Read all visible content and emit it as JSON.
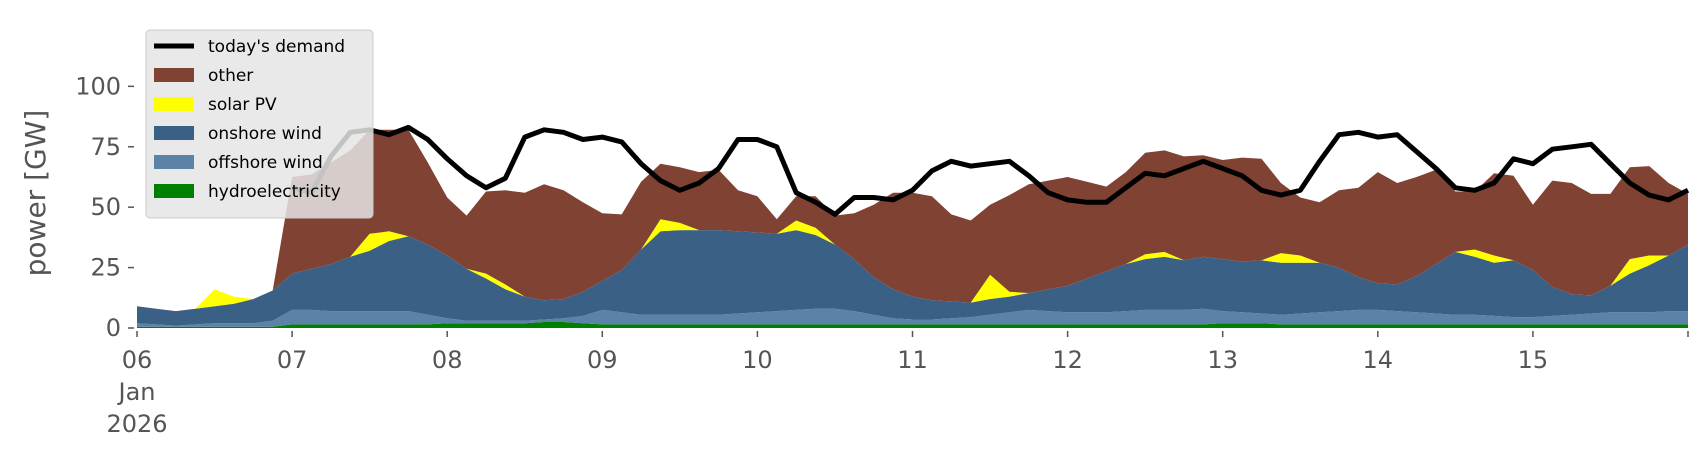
{
  "chart_data": {
    "type": "area",
    "title": "",
    "xlabel": "",
    "ylabel": "power [GW]",
    "ylim": [
      0,
      120
    ],
    "yticks": [
      0,
      25,
      50,
      75,
      100
    ],
    "x_start": "2026-01-06 00:00",
    "x_end": "2026-01-16 00:00",
    "x_tick_labels": [
      {
        "day": "06",
        "month": "Jan",
        "year": "2026"
      },
      {
        "day": "07"
      },
      {
        "day": "08"
      },
      {
        "day": "09"
      },
      {
        "day": "10"
      },
      {
        "day": "11"
      },
      {
        "day": "12"
      },
      {
        "day": "13"
      },
      {
        "day": "14"
      },
      {
        "day": "15"
      }
    ],
    "x_hours": [
      0,
      3,
      6,
      9,
      12,
      15,
      18,
      21,
      24,
      27,
      30,
      33,
      36,
      39,
      42,
      45,
      48,
      51,
      54,
      57,
      60,
      63,
      66,
      69,
      72,
      75,
      78,
      81,
      84,
      87,
      90,
      93,
      96,
      99,
      102,
      105,
      108,
      111,
      114,
      117,
      120,
      123,
      126,
      129,
      132,
      135,
      138,
      141,
      144,
      147,
      150,
      153,
      156,
      159,
      162,
      165,
      168,
      171,
      174,
      177,
      180,
      183,
      186,
      189,
      192,
      195,
      198,
      201,
      204,
      207,
      210,
      213,
      216,
      219,
      222,
      225,
      228,
      231,
      234,
      237,
      240
    ],
    "grid": false,
    "legend_position": "top-left",
    "series": [
      {
        "name": "hydroelectricity",
        "color": "#008000",
        "values": [
          0.5,
          0.5,
          0.5,
          0.5,
          0.5,
          0.5,
          0.5,
          0.5,
          1.5,
          1.5,
          1.5,
          1.5,
          1.5,
          1.5,
          1.5,
          1.5,
          2,
          2,
          2,
          2,
          2,
          2.5,
          2.5,
          2,
          1.5,
          1.5,
          1.5,
          1.5,
          1.5,
          1.5,
          1.5,
          1.5,
          1.5,
          1.5,
          1.5,
          1.5,
          1.5,
          1.5,
          1.5,
          1.5,
          1.5,
          1.5,
          1.5,
          1.5,
          1.5,
          1.5,
          1.5,
          1.5,
          1.5,
          1.5,
          1.5,
          1.5,
          1.5,
          1.5,
          1.5,
          1.5,
          2,
          2,
          2,
          1.5,
          1.5,
          1.5,
          1.5,
          1.5,
          1.5,
          1.5,
          1.5,
          1.5,
          1.5,
          1.5,
          1.5,
          1.5,
          1.5,
          1.5,
          1.5,
          1.5,
          1.5,
          1.5,
          1.5,
          1.5,
          1.5
        ]
      },
      {
        "name": "offshore wind",
        "color": "#5b83a8",
        "values": [
          1.5,
          1,
          0.5,
          1,
          1.5,
          1.5,
          1.5,
          2.5,
          6,
          6,
          5.5,
          5.5,
          5.5,
          5.5,
          5.5,
          4,
          2,
          1,
          1,
          1,
          1,
          1,
          1.5,
          3,
          6,
          5,
          4,
          4,
          4,
          4,
          4,
          4.5,
          5,
          5.5,
          6,
          6.5,
          6.5,
          5.5,
          4,
          2.5,
          2,
          2,
          2.5,
          3,
          4,
          5,
          6,
          5.5,
          5,
          5,
          5,
          5.5,
          6,
          6,
          6,
          6.5,
          5,
          4.5,
          4,
          4,
          4.5,
          5,
          5.5,
          6,
          6,
          5.5,
          5,
          4.5,
          4,
          4,
          3.5,
          3,
          3,
          3.5,
          4,
          4.5,
          5,
          5,
          5,
          5.5,
          5.5
        ]
      },
      {
        "name": "onshore wind",
        "color": "#3a6185",
        "values": [
          7,
          6.5,
          6,
          6.5,
          7,
          8,
          10,
          12.5,
          15,
          17,
          19.5,
          22.5,
          25,
          29,
          31,
          29,
          26,
          21.5,
          17.5,
          13,
          10,
          8,
          8,
          10,
          12,
          17.5,
          27,
          34.5,
          35,
          35,
          35,
          34,
          33,
          32,
          33,
          30.5,
          26.5,
          21.5,
          15.5,
          12,
          9.5,
          8,
          7,
          6,
          6.5,
          6.5,
          7,
          9,
          11,
          14,
          17,
          19.5,
          21,
          22,
          20.5,
          21.5,
          21.5,
          21,
          22,
          21.5,
          21,
          20.5,
          18,
          13.5,
          11,
          11,
          15,
          20.5,
          26,
          24,
          22,
          23.5,
          19.5,
          12,
          8.5,
          7.5,
          11,
          16,
          19.5,
          23,
          27.5
        ]
      },
      {
        "name": "solar PV",
        "color": "#ffff00",
        "values": [
          0,
          0,
          0,
          0,
          7,
          3,
          0,
          0,
          0,
          0,
          0,
          0,
          7,
          4,
          0,
          0,
          0,
          0,
          2,
          2,
          0,
          0,
          0,
          0,
          0,
          0,
          0,
          5,
          3,
          0,
          0,
          0,
          0,
          0,
          4,
          3,
          0,
          0,
          0,
          0,
          0,
          0,
          0,
          0,
          10,
          2,
          0,
          0,
          0,
          0,
          0,
          0,
          2,
          2,
          0,
          0,
          0,
          0,
          0,
          4,
          3,
          0,
          0,
          0,
          0,
          0,
          0,
          0,
          0,
          3,
          3,
          0,
          0,
          0,
          0,
          0,
          0,
          6,
          4,
          0,
          0
        ]
      },
      {
        "name": "other",
        "color": "#804233",
        "values": [
          0,
          0,
          0,
          0,
          0,
          0,
          0,
          0,
          40,
          39,
          42,
          44,
          43,
          42,
          44,
          34,
          24,
          22,
          34,
          39,
          43,
          48,
          45,
          37,
          28,
          23,
          28,
          23,
          23,
          24,
          25,
          17,
          15,
          6,
          10,
          13,
          12,
          19,
          30,
          40,
          43,
          43,
          36,
          34,
          29,
          40,
          45,
          45,
          45,
          40,
          35,
          38,
          42,
          42,
          43,
          42,
          41,
          43,
          42,
          29,
          24,
          25,
          32,
          37,
          46,
          42,
          41,
          39,
          25,
          24,
          34,
          35,
          27,
          44,
          46,
          42,
          38,
          38,
          37,
          30,
          21
        ]
      },
      {
        "name": "today's demand",
        "color": "#000000",
        "type": "line",
        "values": [
          null,
          null,
          null,
          null,
          null,
          null,
          null,
          null,
          58,
          56,
          71,
          81,
          82,
          80,
          83,
          78,
          70,
          63,
          58,
          62,
          79,
          82,
          81,
          78,
          79,
          77,
          68,
          61,
          57,
          60,
          66,
          78,
          78,
          75,
          56,
          52,
          47,
          54,
          54,
          53,
          57,
          65,
          69,
          67,
          68,
          69,
          63,
          56,
          53,
          52,
          52,
          58,
          64,
          63,
          66,
          69,
          66,
          63,
          57,
          55,
          57,
          69,
          80,
          81,
          79,
          80,
          73,
          66,
          58,
          57,
          60,
          70,
          68,
          74,
          75,
          76,
          68,
          60,
          55,
          53,
          57
        ]
      }
    ]
  }
}
